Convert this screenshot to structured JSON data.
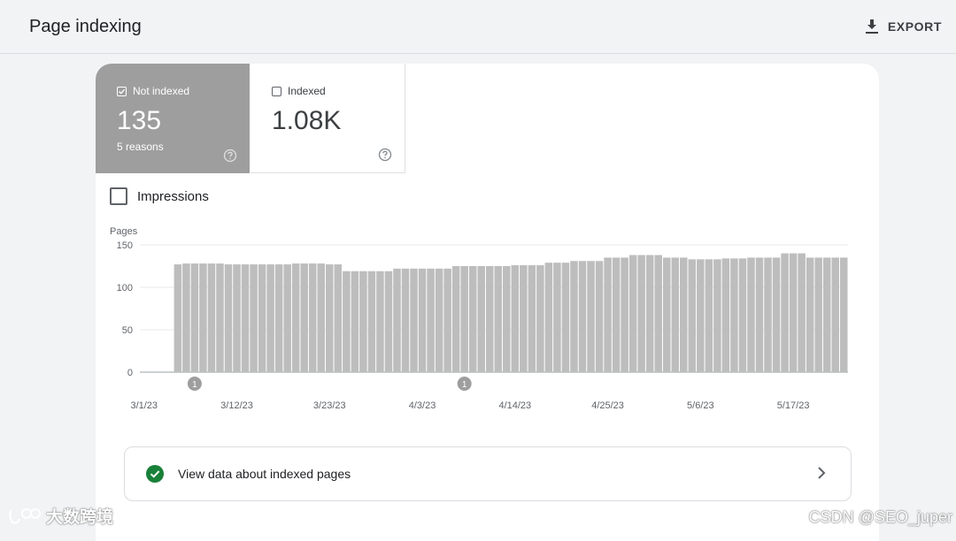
{
  "header": {
    "title": "Page indexing",
    "export_label": "EXPORT"
  },
  "tiles": {
    "not_indexed": {
      "label": "Not indexed",
      "value": "135",
      "sub": "5 reasons",
      "checked": true
    },
    "indexed": {
      "label": "Indexed",
      "value": "1.08K",
      "checked": false
    }
  },
  "impressions": {
    "label": "Impressions",
    "checked": false
  },
  "chart_data": {
    "type": "bar",
    "ylabel": "Pages",
    "ylim": [
      0,
      150
    ],
    "yticks": [
      "0",
      "50",
      "100",
      "150"
    ],
    "grid": true,
    "x_start": "3/1/23",
    "x_tick_labels": [
      "3/1/23",
      "3/12/23",
      "3/23/23",
      "4/3/23",
      "4/14/23",
      "4/25/23",
      "5/6/23",
      "5/17/23"
    ],
    "x_tick_day_index": [
      0,
      11,
      22,
      33,
      44,
      55,
      66,
      77
    ],
    "values": [
      null,
      null,
      null,
      null,
      127,
      128,
      128,
      128,
      128,
      128,
      127,
      127,
      127,
      127,
      127,
      127,
      127,
      127,
      128,
      128,
      128,
      128,
      127,
      127,
      119,
      119,
      119,
      119,
      119,
      119,
      122,
      122,
      122,
      122,
      122,
      122,
      122,
      125,
      125,
      125,
      125,
      125,
      125,
      125,
      126,
      126,
      126,
      126,
      129,
      129,
      129,
      131,
      131,
      131,
      131,
      135,
      135,
      135,
      138,
      138,
      138,
      138,
      135,
      135,
      135,
      133,
      133,
      133,
      133,
      134,
      134,
      134,
      135,
      135,
      135,
      135,
      140,
      140,
      140,
      135,
      135,
      135,
      135,
      135
    ],
    "annotations": [
      {
        "label": "1",
        "day_index": 6
      },
      {
        "label": "1",
        "day_index": 38
      }
    ]
  },
  "cta": {
    "label": "View data about indexed pages"
  },
  "watermarks": {
    "left": "大数跨境",
    "right": "CSDN @SEO_juper"
  }
}
